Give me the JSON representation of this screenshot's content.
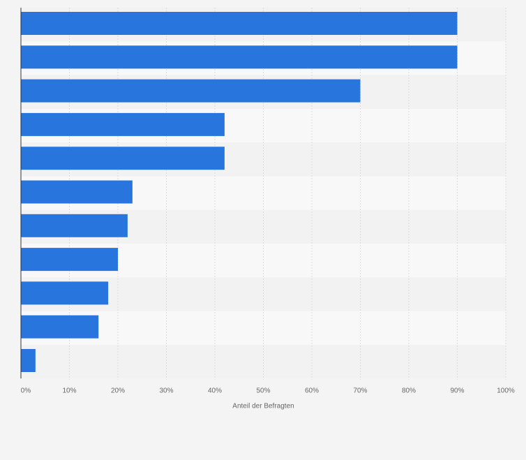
{
  "chart_data": {
    "type": "bar",
    "orientation": "horizontal",
    "categories": [
      "",
      "",
      "",
      "",
      "",
      "",
      "",
      "",
      "",
      "",
      ""
    ],
    "values": [
      90,
      90,
      70,
      42,
      42,
      23,
      22,
      20,
      18,
      16,
      3
    ],
    "xlabel": "Anteil der Befragten",
    "ylabel": "",
    "xlim": [
      0,
      100
    ],
    "x_ticks": [
      0,
      10,
      20,
      30,
      40,
      50,
      60,
      70,
      80,
      90,
      100
    ],
    "x_tick_labels": [
      "0%",
      "10%",
      "20%",
      "30%",
      "40%",
      "50%",
      "60%",
      "70%",
      "80%",
      "90%",
      "100%"
    ],
    "grid": true,
    "bar_color": "#2876dd",
    "row_band_colors": [
      "#f2f2f2",
      "#f8f8f8"
    ]
  }
}
